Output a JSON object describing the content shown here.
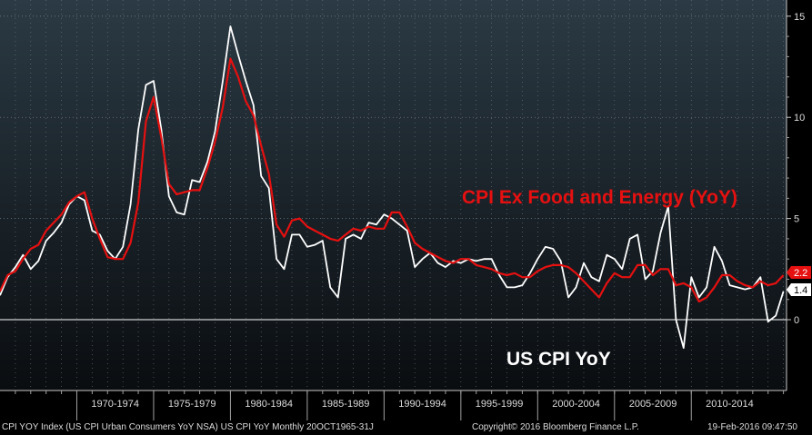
{
  "chart_data": {
    "type": "line",
    "title": "",
    "xlabel": "",
    "ylabel": "",
    "ylim": [
      -3.5,
      15.8
    ],
    "xlim": [
      1965.0,
      2016.2
    ],
    "y_ticks": [
      15,
      10,
      5,
      0
    ],
    "y_tick_labels": [
      "15",
      "10",
      "5",
      "0"
    ],
    "x_bins": [
      {
        "label": "1970-1974",
        "start": 1970,
        "end": 1975
      },
      {
        "label": "1975-1979",
        "start": 1975,
        "end": 1980
      },
      {
        "label": "1980-1984",
        "start": 1980,
        "end": 1985
      },
      {
        "label": "1985-1989",
        "start": 1985,
        "end": 1990
      },
      {
        "label": "1990-1994",
        "start": 1990,
        "end": 1995
      },
      {
        "label": "1995-1999",
        "start": 1995,
        "end": 2000
      },
      {
        "label": "2000-2004",
        "start": 2000,
        "end": 2005
      },
      {
        "label": "2005-2009",
        "start": 2005,
        "end": 2010
      },
      {
        "label": "2010-2014",
        "start": 2010,
        "end": 2015
      }
    ],
    "series": [
      {
        "name": "US CPI YoY",
        "label": "US CPI YoY",
        "color": "#ffffff",
        "last_value": "1.4",
        "x": [
          1965.0,
          1965.5,
          1966.0,
          1966.5,
          1967.0,
          1967.5,
          1968.0,
          1968.5,
          1969.0,
          1969.5,
          1970.0,
          1970.5,
          1971.0,
          1971.5,
          1972.0,
          1972.5,
          1973.0,
          1973.5,
          1974.0,
          1974.5,
          1975.0,
          1975.5,
          1976.0,
          1976.5,
          1977.0,
          1977.5,
          1978.0,
          1978.5,
          1979.0,
          1979.5,
          1980.0,
          1980.5,
          1981.0,
          1981.5,
          1982.0,
          1982.5,
          1983.0,
          1983.5,
          1984.0,
          1984.5,
          1985.0,
          1985.5,
          1986.0,
          1986.5,
          1987.0,
          1987.5,
          1988.0,
          1988.5,
          1989.0,
          1989.5,
          1990.0,
          1990.5,
          1991.0,
          1991.5,
          1992.0,
          1992.5,
          1993.0,
          1993.5,
          1994.0,
          1994.5,
          1995.0,
          1995.5,
          1996.0,
          1996.5,
          1997.0,
          1997.5,
          1998.0,
          1998.5,
          1999.0,
          1999.5,
          2000.0,
          2000.5,
          2001.0,
          2001.5,
          2002.0,
          2002.5,
          2003.0,
          2003.5,
          2004.0,
          2004.5,
          2005.0,
          2005.5,
          2006.0,
          2006.5,
          2007.0,
          2007.5,
          2008.0,
          2008.5,
          2009.0,
          2009.5,
          2010.0,
          2010.5,
          2011.0,
          2011.5,
          2012.0,
          2012.5,
          2013.0,
          2013.5,
          2014.0,
          2014.5,
          2015.0,
          2015.5,
          2016.0
        ],
        "values": [
          1.2,
          2.1,
          2.6,
          3.2,
          2.5,
          2.9,
          3.9,
          4.3,
          4.8,
          5.7,
          6.1,
          5.9,
          4.4,
          4.2,
          3.4,
          3.0,
          3.6,
          5.7,
          9.4,
          11.6,
          11.8,
          9.4,
          6.1,
          5.3,
          5.2,
          6.9,
          6.8,
          7.8,
          9.3,
          11.8,
          14.5,
          13.1,
          11.8,
          10.6,
          7.1,
          6.5,
          3.0,
          2.5,
          4.2,
          4.2,
          3.6,
          3.7,
          3.9,
          1.6,
          1.1,
          4.0,
          4.2,
          4.0,
          4.8,
          4.7,
          5.2,
          5.0,
          4.7,
          4.4,
          2.6,
          3.0,
          3.3,
          2.8,
          2.6,
          2.9,
          2.8,
          3.0,
          2.9,
          3.0,
          3.0,
          2.2,
          1.6,
          1.6,
          1.7,
          2.3,
          3.0,
          3.6,
          3.5,
          2.9,
          1.1,
          1.6,
          2.8,
          2.1,
          1.9,
          3.2,
          3.0,
          2.5,
          4.0,
          4.2,
          2.0,
          2.4,
          4.3,
          5.6,
          0.0,
          -1.4,
          2.1,
          1.1,
          1.6,
          3.6,
          2.9,
          1.7,
          1.6,
          1.5,
          1.6,
          2.1,
          -0.1,
          0.2,
          1.4
        ]
      },
      {
        "name": "CPI Ex Food and Energy (YoY)",
        "label": "CPI Ex Food and Energy (YoY)",
        "color": "#e61010",
        "last_value": "2.2",
        "x": [
          1965.0,
          1965.5,
          1966.0,
          1966.5,
          1967.0,
          1967.5,
          1968.0,
          1968.5,
          1969.0,
          1969.5,
          1970.0,
          1970.5,
          1971.0,
          1971.5,
          1972.0,
          1972.5,
          1973.0,
          1973.5,
          1974.0,
          1974.5,
          1975.0,
          1975.5,
          1976.0,
          1976.5,
          1977.0,
          1977.5,
          1978.0,
          1978.5,
          1979.0,
          1979.5,
          1980.0,
          1980.5,
          1981.0,
          1981.5,
          1982.0,
          1982.5,
          1983.0,
          1983.5,
          1984.0,
          1984.5,
          1985.0,
          1985.5,
          1986.0,
          1986.5,
          1987.0,
          1987.5,
          1988.0,
          1988.5,
          1989.0,
          1989.5,
          1990.0,
          1990.5,
          1991.0,
          1991.5,
          1992.0,
          1992.5,
          1993.0,
          1993.5,
          1994.0,
          1994.5,
          1995.0,
          1995.5,
          1996.0,
          1996.5,
          1997.0,
          1997.5,
          1998.0,
          1998.5,
          1999.0,
          1999.5,
          2000.0,
          2000.5,
          2001.0,
          2001.5,
          2002.0,
          2002.5,
          2003.0,
          2003.5,
          2004.0,
          2004.5,
          2005.0,
          2005.5,
          2006.0,
          2006.5,
          2007.0,
          2007.5,
          2008.0,
          2008.5,
          2009.0,
          2009.5,
          2010.0,
          2010.5,
          2011.0,
          2011.5,
          2012.0,
          2012.5,
          2013.0,
          2013.5,
          2014.0,
          2014.5,
          2015.0,
          2015.5,
          2016.0
        ],
        "values": [
          1.4,
          2.2,
          2.4,
          3.0,
          3.5,
          3.7,
          4.4,
          4.8,
          5.2,
          5.8,
          6.1,
          6.3,
          5.0,
          4.0,
          3.1,
          3.0,
          3.0,
          3.8,
          5.8,
          9.8,
          11.0,
          9.0,
          6.7,
          6.2,
          6.3,
          6.4,
          6.4,
          7.5,
          8.8,
          10.5,
          12.9,
          12.0,
          10.8,
          10.1,
          8.6,
          7.2,
          4.7,
          4.1,
          4.9,
          5.0,
          4.6,
          4.4,
          4.2,
          4.0,
          3.9,
          4.2,
          4.5,
          4.4,
          4.6,
          4.5,
          4.5,
          5.3,
          5.3,
          4.6,
          3.8,
          3.5,
          3.3,
          3.1,
          2.9,
          2.8,
          3.0,
          3.0,
          2.7,
          2.6,
          2.5,
          2.3,
          2.2,
          2.3,
          2.1,
          2.1,
          2.4,
          2.6,
          2.7,
          2.7,
          2.6,
          2.3,
          1.9,
          1.5,
          1.1,
          1.8,
          2.3,
          2.1,
          2.1,
          2.7,
          2.7,
          2.2,
          2.5,
          2.5,
          1.7,
          1.8,
          1.6,
          0.9,
          1.1,
          1.6,
          2.2,
          2.2,
          1.9,
          1.7,
          1.6,
          1.9,
          1.7,
          1.8,
          2.2
        ]
      }
    ],
    "annotations": [
      {
        "text": "CPI Ex Food and Energy (YoY)",
        "color": "#e61010"
      },
      {
        "text": "US CPI YoY",
        "color": "#ffffff"
      }
    ]
  },
  "footer": {
    "left": "CPI YOY Index (US CPI Urban Consumers YoY NSA) US CPI YoY  Monthly 20OCT1965-31J",
    "center": "Copyright© 2016 Bloomberg Finance L.P.",
    "right": "19-Feb-2016 09:47:50"
  },
  "colors": {
    "background_top": "#2b3a44",
    "background_bottom": "#0a0d10",
    "grid": "#6f7b84",
    "axis_text": "#dddddd"
  }
}
